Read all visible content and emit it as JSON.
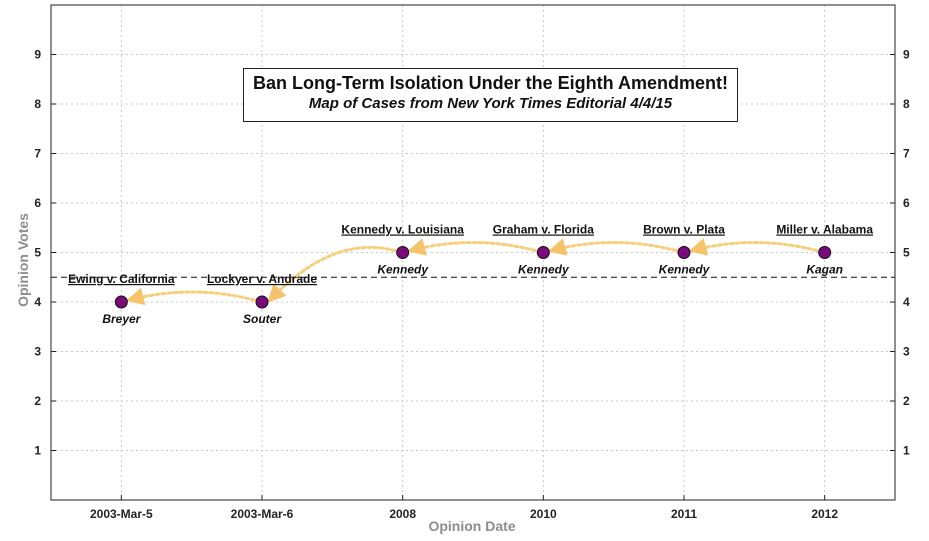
{
  "chart_data": {
    "type": "scatter",
    "title": "Ban Long-Term Isolation Under the Eighth Amendment!",
    "subtitle": "Map of Cases from New York Times Editorial 4/4/15",
    "xlabel": "Opinion Date",
    "ylabel": "Opinion Votes",
    "categories": [
      "2003-Mar-5",
      "2003-Mar-6",
      "2008",
      "2010",
      "2011",
      "2012"
    ],
    "ylim": [
      0,
      10
    ],
    "yticks": [
      1,
      2,
      3,
      4,
      5,
      6,
      7,
      8,
      9
    ],
    "grid": true,
    "reference_line": 4.5,
    "points": [
      {
        "x": "2003-Mar-5",
        "y": 4,
        "case": "Ewing v. California",
        "author": "Breyer"
      },
      {
        "x": "2003-Mar-6",
        "y": 4,
        "case": "Lockyer v. Andrade",
        "author": "Souter"
      },
      {
        "x": "2008",
        "y": 5,
        "case": "Kennedy v. Louisiana",
        "author": "Kennedy"
      },
      {
        "x": "2010",
        "y": 5,
        "case": "Graham v. Florida",
        "author": "Kennedy"
      },
      {
        "x": "2011",
        "y": 5,
        "case": "Brown v. Plata",
        "author": "Kennedy"
      },
      {
        "x": "2012",
        "y": 5,
        "case": "Miller v. Alabama",
        "author": "Kagan"
      }
    ],
    "colors": {
      "point_fill": "#7a0a7a",
      "arrow": "#f5cf7a",
      "grid": "#c8c8c8"
    }
  }
}
